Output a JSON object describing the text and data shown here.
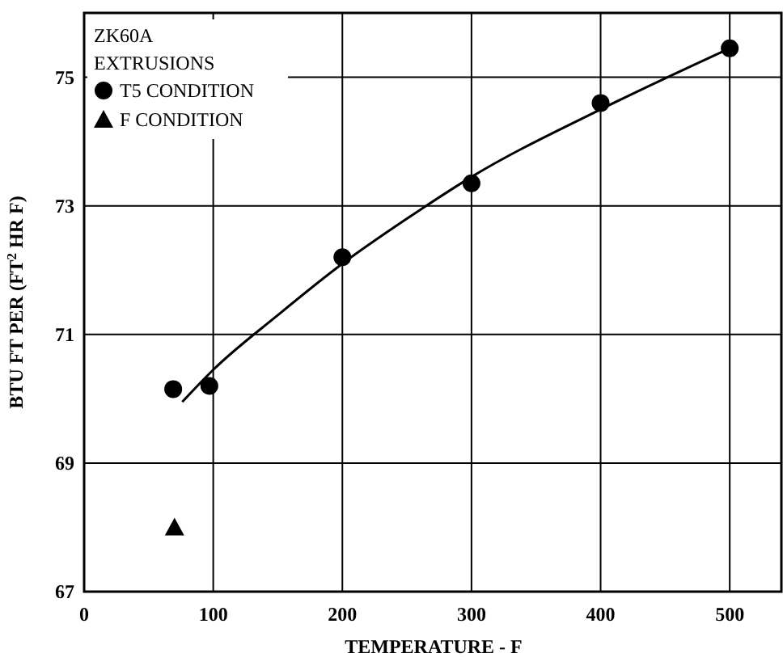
{
  "chart_data": {
    "type": "scatter",
    "xlabel": "TEMPERATURE - F",
    "ylabel": "BTU FT PER (FT$^{2}$ HR F)",
    "legend_title": "ZK60A EXTRUSIONS",
    "xlim": [
      0,
      540
    ],
    "xticks": [
      0,
      100,
      200,
      300,
      400,
      500
    ],
    "ylim": [
      67,
      76
    ],
    "yticks": [
      67,
      69,
      71,
      73,
      75
    ],
    "grid": true,
    "legend": "top left",
    "series": [
      {
        "name": "T5 CONDITION",
        "color": "#000000",
        "marker": "circle",
        "x": [
          69,
          97,
          200,
          300,
          400,
          500
        ],
        "values": [
          70.15,
          70.2,
          72.2,
          73.35,
          74.6,
          75.45
        ]
      },
      {
        "name": "F CONDITION",
        "color": "#000000",
        "marker": "triangle",
        "x": [
          70
        ],
        "values": [
          68.0
        ]
      },
      {
        "type": "line",
        "color": "#000000",
        "marker": "none",
        "x": [
          76,
          100,
          150,
          200,
          250,
          300,
          400,
          500
        ],
        "values": [
          69.95,
          70.45,
          71.3,
          72.1,
          72.8,
          73.45,
          74.5,
          75.45
        ]
      }
    ]
  }
}
